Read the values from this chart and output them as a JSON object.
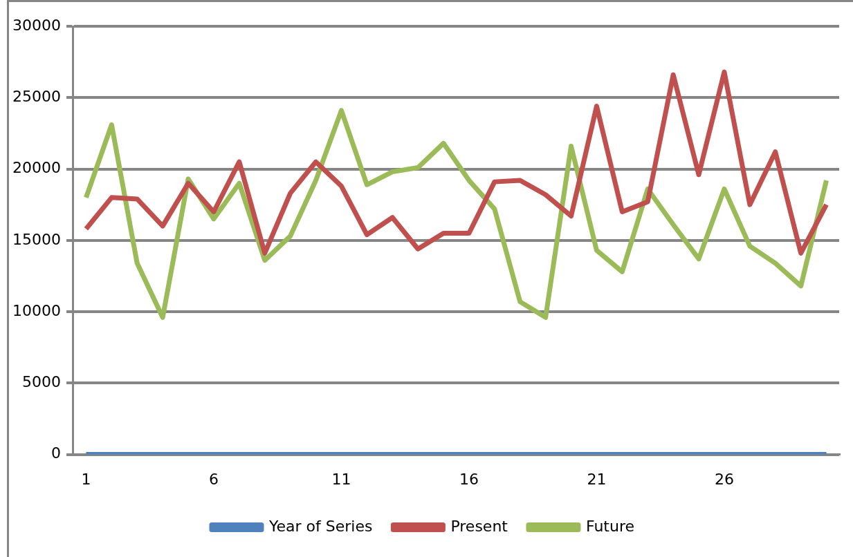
{
  "chart_data": {
    "type": "line",
    "categories": [
      "1",
      null,
      null,
      null,
      null,
      "6",
      null,
      null,
      null,
      null,
      "11",
      null,
      null,
      null,
      null,
      "16",
      null,
      null,
      null,
      null,
      "21",
      null,
      null,
      null,
      null,
      "26",
      null,
      null,
      null,
      null
    ],
    "series": [
      {
        "name": "Year of Series",
        "color": "#4f81bd",
        "values": [
          0,
          0,
          0,
          0,
          0,
          0,
          0,
          0,
          0,
          0,
          0,
          0,
          0,
          0,
          0,
          0,
          0,
          0,
          0,
          0,
          0,
          0,
          0,
          0,
          0,
          0,
          0,
          0,
          0,
          0
        ]
      },
      {
        "name": "Present",
        "color": "#c0504d",
        "values": [
          15800,
          18000,
          17900,
          16000,
          19000,
          17000,
          20500,
          14100,
          18300,
          20500,
          18800,
          15400,
          16600,
          14400,
          15500,
          15500,
          19100,
          19200,
          18200,
          16700,
          24400,
          17000,
          17700,
          26600,
          19600,
          26800,
          17500,
          21200,
          14100,
          17500
        ]
      },
      {
        "name": "Future",
        "color": "#9bbb59",
        "values": [
          18000,
          23100,
          13400,
          9600,
          19300,
          16500,
          19000,
          13600,
          15300,
          19200,
          24100,
          18900,
          19800,
          20100,
          21800,
          19200,
          17200,
          10700,
          9600,
          21600,
          14300,
          12800,
          18600,
          16100,
          13700,
          18600,
          14600,
          13400,
          11800,
          19200
        ]
      }
    ],
    "ylim": [
      0,
      30000
    ],
    "yticks": [
      0,
      5000,
      10000,
      15000,
      20000,
      25000,
      30000
    ],
    "grid": "y",
    "legend": "bottom",
    "marker": "none",
    "line_style": "solid"
  }
}
